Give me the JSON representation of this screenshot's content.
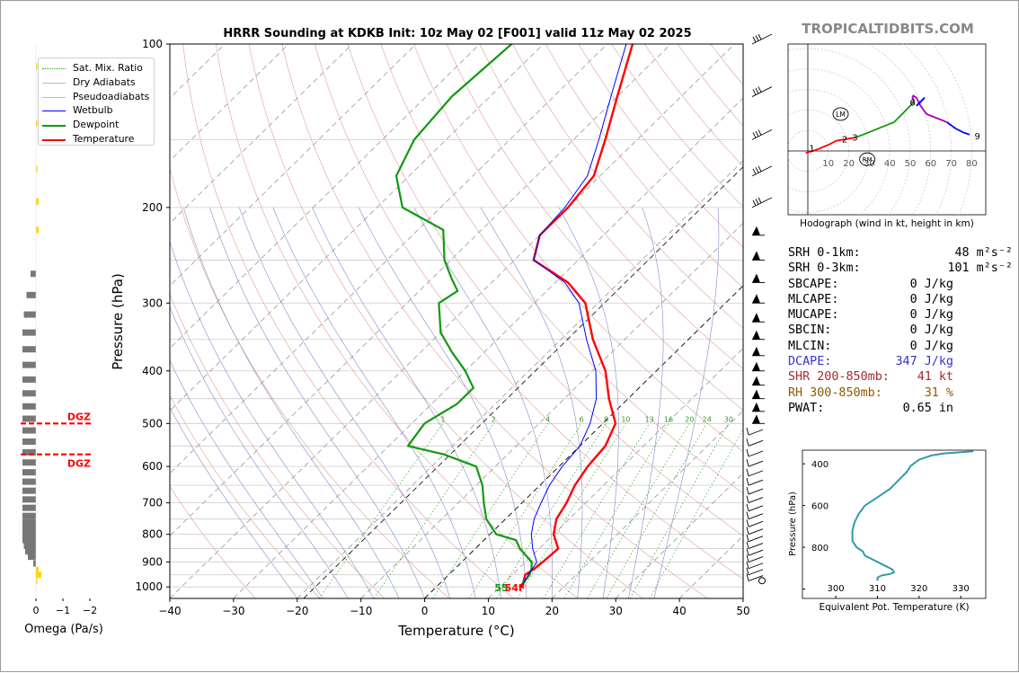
{
  "chart_data": {
    "type": "skewt",
    "title": "HRRR Sounding at KDKB Init: 10z May 02 [F001] valid 11z May 02 2025",
    "xlabel": "Temperature (°C)",
    "ylabel": "Pressure (hPa)",
    "xlim": [
      -40,
      50
    ],
    "ylim": [
      1050,
      100
    ],
    "x_ticks": [
      "−40",
      "−30",
      "−20",
      "−10",
      "0",
      "10",
      "20",
      "30",
      "40",
      "50"
    ],
    "y_ticks": [
      "100",
      "200",
      "300",
      "400",
      "500",
      "600",
      "700",
      "800",
      "900",
      "1000"
    ],
    "legend_position": "top-left",
    "legend": [
      {
        "label": "Sat. Mix. Ratio",
        "color": "#2ca02c",
        "style": "dotted"
      },
      {
        "label": "Dry Adiabats",
        "color": "#bbbbbb",
        "style": "solid"
      },
      {
        "label": "Pseudoadiabats",
        "color": "#bbbbbb",
        "style": "solid"
      },
      {
        "label": "Wetbulb",
        "color": "#0000ff",
        "style": "solid"
      },
      {
        "label": "Dewpoint",
        "color": "#119911",
        "style": "solid"
      },
      {
        "label": "Temperature",
        "color": "#ff0000",
        "style": "solid"
      }
    ],
    "series": [
      {
        "name": "Temperature",
        "color": "#ff0000",
        "points": [
          [
            1000,
            13.5
          ],
          [
            950,
            12
          ],
          [
            925,
            12.5
          ],
          [
            900,
            12.7
          ],
          [
            850,
            13
          ],
          [
            800,
            10
          ],
          [
            750,
            8
          ],
          [
            700,
            7
          ],
          [
            650,
            5.5
          ],
          [
            600,
            4.5
          ],
          [
            550,
            4
          ],
          [
            500,
            2
          ],
          [
            450,
            -3
          ],
          [
            400,
            -8
          ],
          [
            350,
            -15
          ],
          [
            300,
            -22
          ],
          [
            275,
            -28
          ],
          [
            250,
            -37
          ],
          [
            225,
            -40
          ],
          [
            200,
            -40
          ],
          [
            175,
            -41
          ],
          [
            150,
            -45
          ],
          [
            125,
            -50
          ],
          [
            100,
            -56
          ]
        ]
      },
      {
        "name": "Dewpoint",
        "color": "#119911",
        "points": [
          [
            1000,
            13
          ],
          [
            980,
            13
          ],
          [
            950,
            12.7
          ],
          [
            925,
            12
          ],
          [
            900,
            11
          ],
          [
            850,
            7
          ],
          [
            820,
            5
          ],
          [
            800,
            1
          ],
          [
            750,
            -3
          ],
          [
            700,
            -6
          ],
          [
            650,
            -9
          ],
          [
            600,
            -13
          ],
          [
            570,
            -20
          ],
          [
            550,
            -27
          ],
          [
            500,
            -28
          ],
          [
            460,
            -26
          ],
          [
            430,
            -26
          ],
          [
            400,
            -30
          ],
          [
            370,
            -35
          ],
          [
            340,
            -40
          ],
          [
            300,
            -45
          ],
          [
            285,
            -44
          ],
          [
            270,
            -47
          ],
          [
            250,
            -51
          ],
          [
            220,
            -56
          ],
          [
            200,
            -66
          ],
          [
            175,
            -72
          ],
          [
            150,
            -75
          ],
          [
            125,
            -76
          ],
          [
            100,
            -75
          ]
        ]
      },
      {
        "name": "Wetbulb",
        "color": "#0000ff",
        "points": [
          [
            1000,
            13.3
          ],
          [
            950,
            12.5
          ],
          [
            900,
            11.8
          ],
          [
            850,
            9
          ],
          [
            800,
            6.5
          ],
          [
            750,
            4.5
          ],
          [
            700,
            3
          ],
          [
            650,
            1.5
          ],
          [
            600,
            0.5
          ],
          [
            550,
            0
          ],
          [
            500,
            -2
          ],
          [
            450,
            -5
          ],
          [
            400,
            -9.5
          ],
          [
            350,
            -16
          ],
          [
            300,
            -23
          ],
          [
            275,
            -28.5
          ],
          [
            250,
            -37
          ],
          [
            225,
            -40
          ],
          [
            200,
            -40.5
          ],
          [
            175,
            -42
          ],
          [
            150,
            -46
          ],
          [
            125,
            -51
          ],
          [
            100,
            -57
          ]
        ]
      }
    ],
    "surface_labels": {
      "dewpoint_f": "55",
      "temperature_f": "54F",
      "dewpoint_color": "#119911",
      "temperature_color": "#ff0000"
    },
    "mixing_ratio_labels": [
      "1",
      "2",
      "4",
      "6",
      "8",
      "10",
      "13",
      "16",
      "20",
      "24",
      "30",
      "36"
    ],
    "wind_barbs_hpa": [
      100,
      125,
      150,
      175,
      200,
      225,
      250,
      275,
      300,
      325,
      350,
      375,
      400,
      425,
      450,
      475,
      500,
      525,
      550,
      575,
      600,
      625,
      650,
      675,
      700,
      725,
      750,
      775,
      800,
      825,
      850,
      875,
      900,
      925,
      950,
      975,
      1000
    ]
  },
  "omega_panel": {
    "xlabel": "Omega (Pa/s)",
    "x_ticks": [
      "0",
      "−1",
      "−2"
    ],
    "dgz_label": "DGZ",
    "dgz_bounds_hpa": [
      500,
      570
    ],
    "bars": [
      {
        "p": 110,
        "v": -0.05
      },
      {
        "p": 140,
        "v": -0.05
      },
      {
        "p": 170,
        "v": -0.02
      },
      {
        "p": 195,
        "v": -0.1
      },
      {
        "p": 220,
        "v": -0.1
      },
      {
        "p": 265,
        "v": 0.2
      },
      {
        "p": 290,
        "v": 0.35
      },
      {
        "p": 315,
        "v": 0.45
      },
      {
        "p": 340,
        "v": 0.5
      },
      {
        "p": 365,
        "v": 0.5
      },
      {
        "p": 390,
        "v": 0.5
      },
      {
        "p": 415,
        "v": 0.5
      },
      {
        "p": 440,
        "v": 0.5
      },
      {
        "p": 465,
        "v": 0.5
      },
      {
        "p": 490,
        "v": 0.5
      },
      {
        "p": 515,
        "v": 0.5
      },
      {
        "p": 540,
        "v": 0.5
      },
      {
        "p": 565,
        "v": 0.5
      },
      {
        "p": 590,
        "v": 0.5
      },
      {
        "p": 615,
        "v": 0.5
      },
      {
        "p": 640,
        "v": 0.5
      },
      {
        "p": 665,
        "v": 0.5
      },
      {
        "p": 690,
        "v": 0.5
      },
      {
        "p": 715,
        "v": 0.5
      },
      {
        "p": 740,
        "v": 0.5
      },
      {
        "p": 760,
        "v": 0.5
      },
      {
        "p": 780,
        "v": 0.5
      },
      {
        "p": 800,
        "v": 0.5
      },
      {
        "p": 820,
        "v": 0.5
      },
      {
        "p": 840,
        "v": 0.45
      },
      {
        "p": 860,
        "v": 0.4
      },
      {
        "p": 880,
        "v": 0.3
      },
      {
        "p": 905,
        "v": 0.1
      },
      {
        "p": 930,
        "v": -0.1
      },
      {
        "p": 950,
        "v": -0.2
      },
      {
        "p": 975,
        "v": -0.05
      }
    ]
  },
  "hodograph": {
    "site_label": "TROPICALTIDBITS.COM",
    "title": "Hodograph (wind in kt, height in km)",
    "rings": [
      "10",
      "20",
      "30",
      "40",
      "50",
      "60",
      "70",
      "80"
    ],
    "height_labels": [
      "1",
      "2",
      "3",
      "6",
      "9"
    ],
    "markers": [
      "LM",
      "RM"
    ],
    "segments": [
      {
        "color": "#ff0000",
        "points": [
          [
            -1,
            -1
          ],
          [
            4,
            0.5
          ],
          [
            10,
            3
          ],
          [
            14,
            5
          ],
          [
            20,
            6
          ],
          [
            23,
            6.5
          ]
        ]
      },
      {
        "color": "#119911",
        "points": [
          [
            23,
            6.5
          ],
          [
            27,
            8
          ],
          [
            32,
            10
          ],
          [
            37,
            12
          ],
          [
            42,
            14
          ],
          [
            46,
            18
          ],
          [
            48,
            20
          ],
          [
            50,
            22
          ],
          [
            52,
            24
          ]
        ]
      },
      {
        "color": "#aa00aa",
        "points": [
          [
            52,
            24
          ],
          [
            51,
            26
          ],
          [
            51.5,
            27
          ],
          [
            53,
            26
          ],
          [
            55,
            22
          ],
          [
            58,
            18
          ],
          [
            63,
            16
          ],
          [
            68,
            14
          ]
        ]
      },
      {
        "color": "#0000ff",
        "points": [
          [
            68,
            14
          ],
          [
            72,
            11
          ],
          [
            76,
            9
          ],
          [
            79,
            8
          ]
        ]
      }
    ],
    "storm_motion_bar": [
      [
        53,
        22
      ],
      [
        57,
        26
      ]
    ]
  },
  "stats": [
    {
      "label": "SRH 0-1km:",
      "value": "48",
      "unit": "m²s⁻²",
      "color": "#000000"
    },
    {
      "label": "SRH 0-3km:",
      "value": "101",
      "unit": "m²s⁻²",
      "color": "#000000"
    },
    {
      "label": "SBCAPE:",
      "value": "0 J/kg",
      "unit": "",
      "color": "#000000"
    },
    {
      "label": "MLCAPE:",
      "value": "0 J/kg",
      "unit": "",
      "color": "#000000"
    },
    {
      "label": "MUCAPE:",
      "value": "0 J/kg",
      "unit": "",
      "color": "#000000"
    },
    {
      "label": "SBCIN:",
      "value": "0 J/kg",
      "unit": "",
      "color": "#000000"
    },
    {
      "label": "MLCIN:",
      "value": "0 J/kg",
      "unit": "",
      "color": "#000000"
    },
    {
      "label": "DCAPE:",
      "value": "347 J/kg",
      "unit": "",
      "color": "#3333cc"
    },
    {
      "label": "SHR 200-850mb:",
      "value": "41 kt",
      "unit": "",
      "color": "#a52a2a"
    },
    {
      "label": "RH 300-850mb:",
      "value": "31 %",
      "unit": "",
      "color": "#8b5a00"
    },
    {
      "label": "PWAT:",
      "value": "0.65 in",
      "unit": "",
      "color": "#000000"
    }
  ],
  "theta_e_panel": {
    "xlabel": "Equivalent Pot. Temperature (K)",
    "ylabel": "Pressure (hPa)",
    "x_ticks": [
      "300",
      "310",
      "320",
      "330"
    ],
    "y_ticks": [
      "400",
      "600",
      "800"
    ],
    "color": "#3399aa",
    "points": [
      [
        310,
        960
      ],
      [
        310,
        945
      ],
      [
        311,
        935
      ],
      [
        313,
        928
      ],
      [
        314,
        920
      ],
      [
        313.5,
        905
      ],
      [
        311,
        880
      ],
      [
        309,
        860
      ],
      [
        307,
        840
      ],
      [
        306.5,
        820
      ],
      [
        305,
        800
      ],
      [
        304,
        770
      ],
      [
        304,
        720
      ],
      [
        304.5,
        680
      ],
      [
        305.5,
        640
      ],
      [
        307,
        600
      ],
      [
        310,
        560
      ],
      [
        313,
        520
      ],
      [
        315,
        480
      ],
      [
        317,
        440
      ],
      [
        318,
        410
      ],
      [
        320,
        380
      ],
      [
        323,
        360
      ],
      [
        326,
        350
      ],
      [
        333,
        340
      ]
    ]
  }
}
